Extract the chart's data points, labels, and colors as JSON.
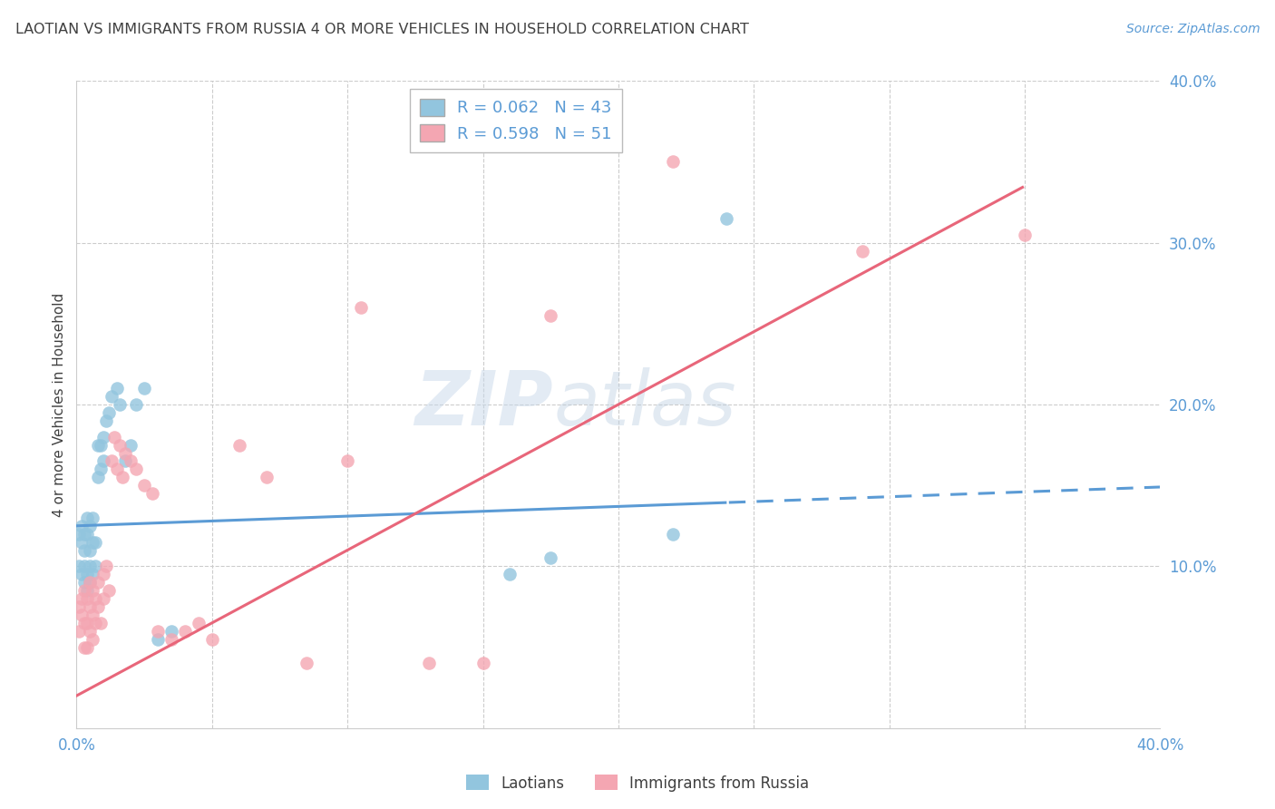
{
  "title": "LAOTIAN VS IMMIGRANTS FROM RUSSIA 4 OR MORE VEHICLES IN HOUSEHOLD CORRELATION CHART",
  "source": "Source: ZipAtlas.com",
  "ylabel": "4 or more Vehicles in Household",
  "watermark_line1": "ZIP",
  "watermark_line2": "atlas",
  "x_min": 0.0,
  "x_max": 0.4,
  "y_min": 0.0,
  "y_max": 0.4,
  "laotian_color": "#92c5de",
  "russia_color": "#f4a6b2",
  "laotian_line_color": "#5b9bd5",
  "russia_line_color": "#e8667a",
  "laotian_R": 0.062,
  "laotian_N": 43,
  "russia_R": 0.598,
  "russia_N": 51,
  "laotian_scatter_x": [
    0.001,
    0.001,
    0.002,
    0.002,
    0.002,
    0.003,
    0.003,
    0.003,
    0.003,
    0.004,
    0.004,
    0.004,
    0.004,
    0.005,
    0.005,
    0.005,
    0.005,
    0.006,
    0.006,
    0.006,
    0.007,
    0.007,
    0.008,
    0.008,
    0.009,
    0.009,
    0.01,
    0.01,
    0.011,
    0.012,
    0.013,
    0.015,
    0.016,
    0.018,
    0.02,
    0.022,
    0.025,
    0.03,
    0.035,
    0.16,
    0.175,
    0.22,
    0.24
  ],
  "laotian_scatter_y": [
    0.12,
    0.1,
    0.125,
    0.115,
    0.095,
    0.12,
    0.11,
    0.1,
    0.09,
    0.13,
    0.12,
    0.095,
    0.085,
    0.125,
    0.11,
    0.1,
    0.09,
    0.13,
    0.115,
    0.095,
    0.115,
    0.1,
    0.175,
    0.155,
    0.175,
    0.16,
    0.18,
    0.165,
    0.19,
    0.195,
    0.205,
    0.21,
    0.2,
    0.165,
    0.175,
    0.2,
    0.21,
    0.055,
    0.06,
    0.095,
    0.105,
    0.12,
    0.315
  ],
  "russia_scatter_x": [
    0.001,
    0.001,
    0.002,
    0.002,
    0.003,
    0.003,
    0.003,
    0.004,
    0.004,
    0.004,
    0.005,
    0.005,
    0.005,
    0.006,
    0.006,
    0.006,
    0.007,
    0.007,
    0.008,
    0.008,
    0.009,
    0.01,
    0.01,
    0.011,
    0.012,
    0.013,
    0.014,
    0.015,
    0.016,
    0.017,
    0.018,
    0.02,
    0.022,
    0.025,
    0.028,
    0.03,
    0.035,
    0.04,
    0.045,
    0.05,
    0.06,
    0.07,
    0.085,
    0.1,
    0.105,
    0.13,
    0.15,
    0.175,
    0.22,
    0.29,
    0.35
  ],
  "russia_scatter_y": [
    0.075,
    0.06,
    0.08,
    0.07,
    0.085,
    0.065,
    0.05,
    0.08,
    0.065,
    0.05,
    0.09,
    0.075,
    0.06,
    0.085,
    0.07,
    0.055,
    0.08,
    0.065,
    0.09,
    0.075,
    0.065,
    0.095,
    0.08,
    0.1,
    0.085,
    0.165,
    0.18,
    0.16,
    0.175,
    0.155,
    0.17,
    0.165,
    0.16,
    0.15,
    0.145,
    0.06,
    0.055,
    0.06,
    0.065,
    0.055,
    0.175,
    0.155,
    0.04,
    0.165,
    0.26,
    0.04,
    0.04,
    0.255,
    0.35,
    0.295,
    0.305
  ],
  "background_color": "#ffffff",
  "grid_color": "#cccccc",
  "tick_color": "#5b9bd5",
  "title_color": "#404040",
  "legend_border_color": "#bbbbbb",
  "legend_label_blue": "R = 0.062   N = 43",
  "legend_label_pink": "R = 0.598   N = 51"
}
